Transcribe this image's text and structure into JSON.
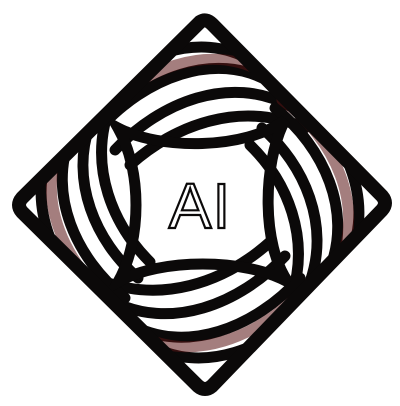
{
  "logo": {
    "text": "AI",
    "colors": {
      "background": "#ffffff",
      "ink": "#0b0909",
      "accent": "#5a1414"
    },
    "icon_name": "ai-swirl-logo-icon"
  }
}
